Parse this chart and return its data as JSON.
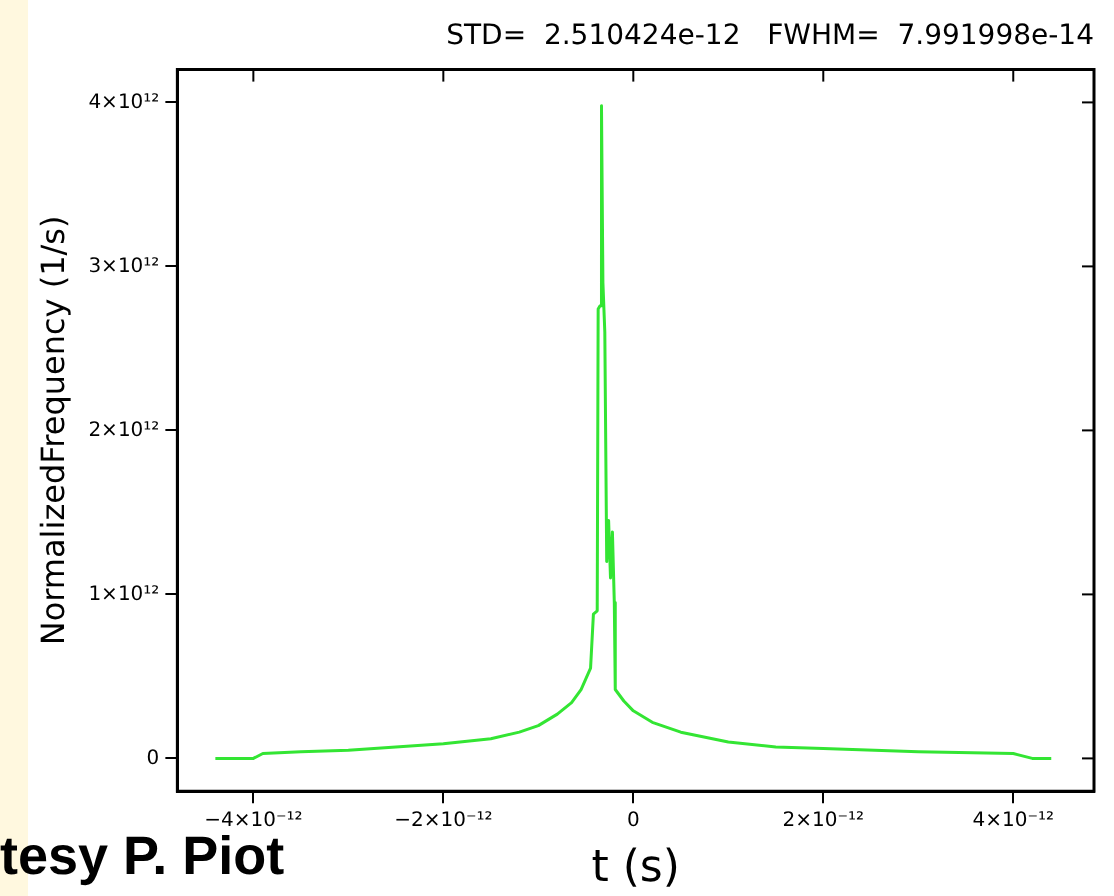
{
  "chart_data": {
    "type": "line",
    "title": "STD=  2.510424e-12   FWHM=  7.991998e-14",
    "xlabel": "t (s)",
    "ylabel": "NormalizedFrequency (1/s)",
    "annotations": [
      "tesy P. Piot"
    ],
    "x": [
      -4.4e-12,
      -4e-12,
      -3.9e-12,
      -3.5e-12,
      -3e-12,
      -2.5e-12,
      -2e-12,
      -1.5e-12,
      -1.2e-12,
      -1e-12,
      -8e-13,
      -6.5e-13,
      -5.5e-13,
      -4.5e-13,
      -4.2e-13,
      -3.8e-13,
      -3.7e-13,
      -3.5e-13,
      -3.4e-13,
      -3.3e-13,
      -3.2e-13,
      -3e-13,
      -2.8e-13,
      -2.6e-13,
      -2.4e-13,
      -2.2e-13,
      -2e-13,
      -1.9e-13,
      -1e-13,
      0,
      2e-13,
      5e-13,
      1e-12,
      1.5e-12,
      2e-12,
      3e-12,
      4e-12,
      4.2e-12,
      4.4e-12
    ],
    "series": [
      {
        "color": "#33e533",
        "values": [
          0,
          0,
          30000000000.0,
          40000000000.0,
          50000000000.0,
          70000000000.0,
          90000000000.0,
          120000000000.0,
          160000000000.0,
          200000000000.0,
          270000000000.0,
          340000000000.0,
          420000000000.0,
          550000000000.0,
          880000000000.0,
          900000000000.0,
          2740000000000.0,
          2760000000000.0,
          2880000000000.0,
          3980000000000.0,
          2900000000000.0,
          2600000000000.0,
          1200000000000.0,
          1450000000000.0,
          1100000000000.0,
          1380000000000.0,
          950000000000.0,
          420000000000.0,
          350000000000.0,
          290000000000.0,
          220000000000.0,
          160000000000.0,
          100000000000.0,
          70000000000.0,
          60000000000.0,
          40000000000.0,
          30000000000.0,
          0,
          0
        ]
      }
    ],
    "xlim": [
      -4.8e-12,
      4.85e-12
    ],
    "ylim": [
      -200000000000.0,
      4200000000000.0
    ],
    "xticks": [
      {
        "value": -4e-12,
        "label": "−4×10⁻¹²"
      },
      {
        "value": -2e-12,
        "label": "−2×10⁻¹²"
      },
      0,
      {
        "value": 2e-12,
        "label": "2×10⁻¹²"
      },
      {
        "value": 4e-12,
        "label": "4×10⁻¹²"
      }
    ],
    "yticks": [
      0,
      {
        "value": 1000000000000.0,
        "label": "1×10¹²"
      },
      {
        "value": 2000000000000.0,
        "label": "2×10¹²"
      },
      {
        "value": 3000000000000.0,
        "label": "3×10¹²"
      },
      {
        "value": 4000000000000.0,
        "label": "4×10¹²"
      }
    ],
    "grid": false,
    "legend": false,
    "marker": "none",
    "line_style": "solid"
  }
}
